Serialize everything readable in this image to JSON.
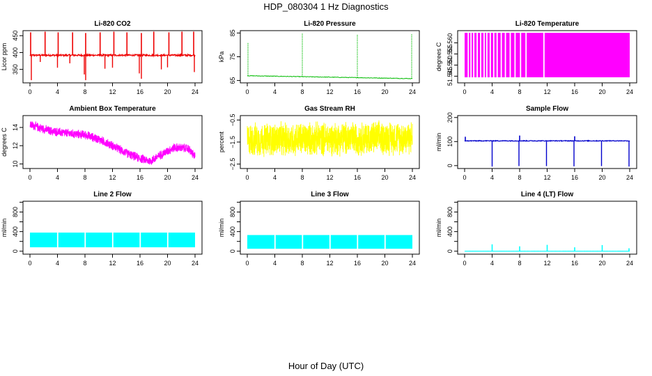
{
  "page": {
    "title": "HDP_080304  1 Hz Diagnostics",
    "xlabel": "Hour of Day (UTC)"
  },
  "chart_data": [
    {
      "id": "co2",
      "type": "line",
      "title": "Li-820 CO2",
      "ylabel": "Licor ppm",
      "color": "#ee0000",
      "xlim": [
        0,
        24
      ],
      "ylim": [
        310,
        465
      ],
      "xticks": [
        0,
        4,
        8,
        12,
        16,
        20,
        24
      ],
      "yticks": [
        350,
        400,
        450
      ],
      "yticklabels": [
        "350",
        "400",
        "450"
      ],
      "style": "spiky",
      "base": 392,
      "noise": 5,
      "spikes_up": [
        {
          "x": 0.1,
          "y": 460
        },
        {
          "x": 2.2,
          "y": 462
        },
        {
          "x": 4.1,
          "y": 460
        },
        {
          "x": 6.2,
          "y": 460
        },
        {
          "x": 8.1,
          "y": 458
        },
        {
          "x": 10.2,
          "y": 460
        },
        {
          "x": 12.2,
          "y": 462
        },
        {
          "x": 14.1,
          "y": 460
        },
        {
          "x": 16.2,
          "y": 458
        },
        {
          "x": 18.0,
          "y": 462
        },
        {
          "x": 20.2,
          "y": 460
        },
        {
          "x": 22.1,
          "y": 462
        },
        {
          "x": 23.8,
          "y": 462
        }
      ],
      "spikes_down": [
        {
          "x": 0.2,
          "y": 318
        },
        {
          "x": 1.5,
          "y": 372
        },
        {
          "x": 4.0,
          "y": 355
        },
        {
          "x": 5.8,
          "y": 368
        },
        {
          "x": 7.9,
          "y": 335
        },
        {
          "x": 8.1,
          "y": 318
        },
        {
          "x": 10.9,
          "y": 352
        },
        {
          "x": 12.0,
          "y": 355
        },
        {
          "x": 15.9,
          "y": 338
        },
        {
          "x": 16.2,
          "y": 322
        },
        {
          "x": 19.1,
          "y": 350
        },
        {
          "x": 20.0,
          "y": 356
        },
        {
          "x": 23.9,
          "y": 342
        }
      ]
    },
    {
      "id": "pressure",
      "type": "line",
      "title": "Li-820 Pressure",
      "ylabel": "kPa",
      "color": "#00bb00",
      "xlim": [
        0,
        24
      ],
      "ylim": [
        64,
        86
      ],
      "xticks": [
        0,
        4,
        8,
        12,
        16,
        20,
        24
      ],
      "yticks": [
        65,
        75,
        85
      ],
      "yticklabels": [
        "65",
        "75",
        "85"
      ],
      "style": "pressure",
      "baseline": [
        {
          "x": 0,
          "y": 67.0
        },
        {
          "x": 8,
          "y": 66.6
        },
        {
          "x": 16,
          "y": 66.2
        },
        {
          "x": 24,
          "y": 65.8
        }
      ],
      "spikes_up": [
        {
          "x": 0.1,
          "y": 81
        },
        {
          "x": 8.0,
          "y": 85
        },
        {
          "x": 16.0,
          "y": 84.5
        },
        {
          "x": 23.9,
          "y": 84.5
        }
      ]
    },
    {
      "id": "licor_temp",
      "type": "bars",
      "title": "Li-820 Temperature",
      "ylabel": "degrees C",
      "color": "#ff00ff",
      "xlim": [
        0,
        24
      ],
      "ylim": [
        51.542,
        51.5655
      ],
      "xticks": [
        0,
        4,
        8,
        12,
        16,
        20,
        24
      ],
      "yticks": [
        51.545,
        51.55,
        51.555,
        51.56
      ],
      "yticklabels": [
        "51.545",
        "51.550",
        "51.555",
        "51.560"
      ],
      "style": "band",
      "low": 51.5445,
      "high": 51.5645,
      "gaps": [
        0.5,
        0.9,
        1.3,
        1.8,
        2.3,
        2.8,
        3.2,
        3.7,
        4.2,
        4.7,
        5.3,
        5.9,
        6.6,
        7.3,
        8.1,
        8.9,
        11.5
      ]
    },
    {
      "id": "box_temp",
      "type": "line",
      "title": "Ambient Box Temperature",
      "ylabel": "degrees C",
      "color": "#ff00ff",
      "xlim": [
        0,
        24
      ],
      "ylim": [
        9.5,
        15.3
      ],
      "xticks": [
        0,
        4,
        8,
        12,
        16,
        20,
        24
      ],
      "yticks": [
        10,
        12,
        14
      ],
      "yticklabels": [
        "10",
        "12",
        "14"
      ],
      "style": "noisy",
      "amp": 0.55,
      "curve": [
        {
          "x": 0,
          "y": 14.3
        },
        {
          "x": 3,
          "y": 13.6
        },
        {
          "x": 6,
          "y": 13.3
        },
        {
          "x": 8,
          "y": 13.2
        },
        {
          "x": 10,
          "y": 12.7
        },
        {
          "x": 12,
          "y": 12.0
        },
        {
          "x": 14,
          "y": 11.2
        },
        {
          "x": 16,
          "y": 10.6
        },
        {
          "x": 17.5,
          "y": 10.3
        },
        {
          "x": 19,
          "y": 11.0
        },
        {
          "x": 21,
          "y": 11.8
        },
        {
          "x": 23,
          "y": 11.7
        },
        {
          "x": 24,
          "y": 10.8
        }
      ]
    },
    {
      "id": "rh",
      "type": "line",
      "title": "Gas Stream RH",
      "ylabel": "percent",
      "color": "#ffff00",
      "xlim": [
        0,
        24
      ],
      "ylim": [
        -2.7,
        -0.3
      ],
      "xticks": [
        0,
        4,
        8,
        12,
        16,
        20,
        24
      ],
      "yticks": [
        -2.5,
        -1.5,
        -0.5
      ],
      "yticklabels": [
        "−2.5",
        "−1.5",
        "−0.5"
      ],
      "style": "noisy",
      "amp": 0.85,
      "curve": [
        {
          "x": 0,
          "y": -1.4
        },
        {
          "x": 24,
          "y": -1.3
        }
      ]
    },
    {
      "id": "sample_flow",
      "type": "line",
      "title": "Sample Flow",
      "ylabel": "ml/min",
      "color": "#0000cc",
      "xlim": [
        0,
        24
      ],
      "ylim": [
        -12,
        208
      ],
      "xticks": [
        0,
        4,
        8,
        12,
        16,
        20,
        24
      ],
      "yticks": [
        0,
        100,
        200
      ],
      "yticklabels": [
        "0",
        "100",
        "200"
      ],
      "style": "spiky",
      "base": 103,
      "noise": 3,
      "spikes_up": [
        {
          "x": 0.1,
          "y": 120
        },
        {
          "x": 8.0,
          "y": 125
        },
        {
          "x": 16.0,
          "y": 122
        }
      ],
      "spikes_down": [
        {
          "x": 4.0,
          "y": -4
        },
        {
          "x": 7.9,
          "y": -2
        },
        {
          "x": 11.9,
          "y": -2
        },
        {
          "x": 15.9,
          "y": -3
        },
        {
          "x": 19.9,
          "y": -2
        },
        {
          "x": 23.9,
          "y": -4
        }
      ]
    },
    {
      "id": "line2",
      "type": "bars",
      "title": "Line 2 Flow",
      "ylabel": "ml/min",
      "color": "#00ffff",
      "xlim": [
        0,
        24
      ],
      "ylim": [
        -60,
        1020
      ],
      "xticks": [
        0,
        4,
        8,
        12,
        16,
        20,
        24
      ],
      "yticks": [
        0,
        200,
        400,
        600,
        800,
        1000
      ],
      "yticklabels": [
        "0",
        "400",
        "800"
      ],
      "style": "band",
      "low": 80,
      "high": 380,
      "gaps": [
        4.0,
        8.0,
        12.0,
        16.0,
        20.0
      ]
    },
    {
      "id": "line3",
      "type": "bars",
      "title": "Line 3 Flow",
      "ylabel": "ml/min",
      "color": "#00ffff",
      "xlim": [
        0,
        24
      ],
      "ylim": [
        -60,
        1020
      ],
      "xticks": [
        0,
        4,
        8,
        12,
        16,
        20,
        24
      ],
      "yticks": [
        0,
        200,
        400,
        600,
        800,
        1000
      ],
      "yticklabels": [
        "0",
        "400",
        "800"
      ],
      "style": "band",
      "low": 50,
      "high": 330,
      "gaps": [
        4.0,
        8.0,
        12.0,
        16.0,
        20.0
      ]
    },
    {
      "id": "line4",
      "type": "line",
      "title": "Line 4 (LT) Flow",
      "ylabel": "ml/min",
      "color": "#00ffff",
      "xlim": [
        0,
        24
      ],
      "ylim": [
        -60,
        1020
      ],
      "xticks": [
        0,
        4,
        8,
        12,
        16,
        20,
        24
      ],
      "yticks": [
        0,
        200,
        400,
        600,
        800,
        1000
      ],
      "yticklabels": [
        "0",
        "400",
        "800"
      ],
      "style": "spiky",
      "base": 0,
      "noise": 1,
      "spikes_up": [
        {
          "x": 4.0,
          "y": 140
        },
        {
          "x": 8.0,
          "y": 100
        },
        {
          "x": 12.0,
          "y": 130
        },
        {
          "x": 16.0,
          "y": 80
        },
        {
          "x": 20.0,
          "y": 125
        },
        {
          "x": 23.9,
          "y": 60
        }
      ],
      "spikes_down": []
    }
  ]
}
